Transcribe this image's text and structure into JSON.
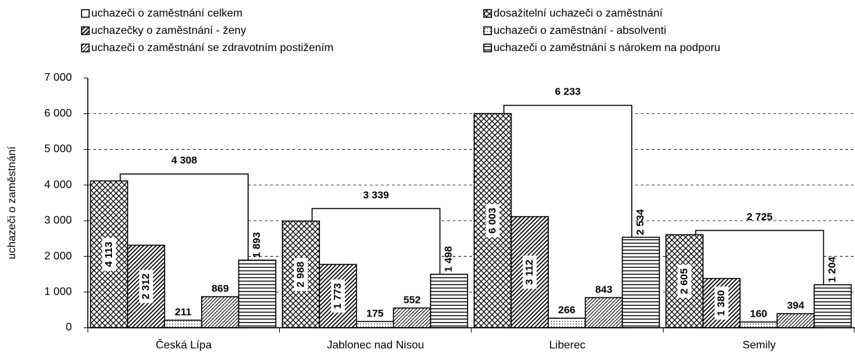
{
  "chart_data": {
    "type": "bar",
    "y_label": "uchazeči o zaměstnání",
    "categories": [
      "Česká Lípa",
      "Jablonec nad Nisou",
      "Liberec",
      "Semily"
    ],
    "series": [
      {
        "name": "uchazeči o zaměstnání celkem",
        "color": "#ffffff",
        "values": [
          4308,
          3339,
          6233,
          2725
        ],
        "value_labels": [
          "4 308",
          "3 339",
          "6 233",
          "2 725"
        ]
      },
      {
        "name": "dosažitelní uchazeči o zaměstnání",
        "color": "#000000",
        "values": [
          4113,
          2988,
          6003,
          2605
        ],
        "value_labels": [
          "4 113",
          "2 988",
          "6 003",
          "2 605"
        ]
      },
      {
        "name": "uchazečky o zaměstnání - ženy",
        "color": "#000000",
        "values": [
          2312,
          1773,
          3112,
          1380
        ],
        "value_labels": [
          "2 312",
          "1 773",
          "3 112",
          "1 380"
        ]
      },
      {
        "name": "uchazeči o zaměstnání - absolventi",
        "color": "#000000",
        "values": [
          211,
          175,
          266,
          160
        ]
      },
      {
        "name": "uchazeči o zaměstnání se zdravotním postižením",
        "color": "#000000",
        "values": [
          869,
          552,
          843,
          394
        ]
      },
      {
        "name": "uchazeči o zaměstnání s nárokem na podporu",
        "color": "#000000",
        "values": [
          1893,
          1498,
          2534,
          1204
        ],
        "value_labels": [
          "1 893",
          "1 498",
          "2 534",
          "1 204"
        ]
      }
    ],
    "ylim": [
      0,
      7000
    ],
    "yticks": [
      0,
      {
        "value": 1000,
        "label": "1 000"
      },
      {
        "value": 2000,
        "label": "2 000"
      },
      {
        "value": 3000,
        "label": "3 000"
      },
      {
        "value": 4000,
        "label": "4 000"
      },
      {
        "value": 5000,
        "label": "5 000"
      },
      {
        "value": 6000,
        "label": "6 000"
      },
      {
        "value": 7000,
        "label": "7 000"
      }
    ],
    "grid": true
  }
}
